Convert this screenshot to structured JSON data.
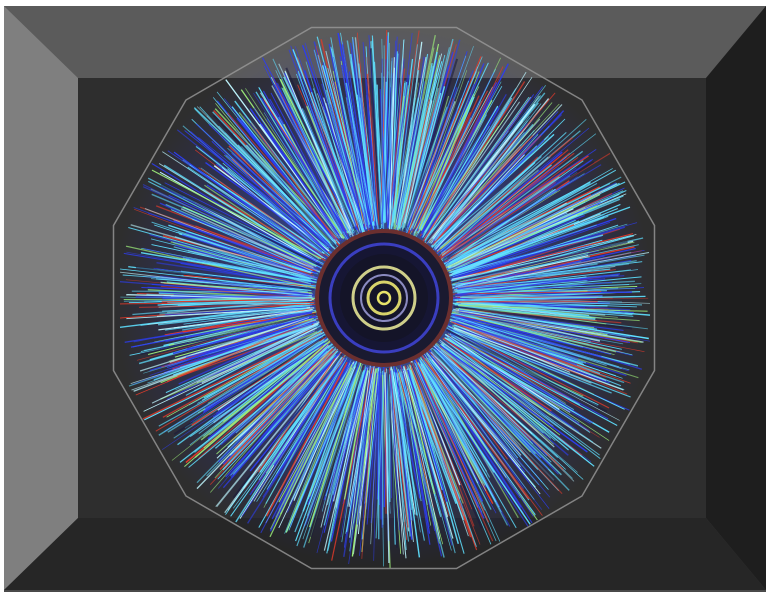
{
  "image": {
    "subject": "particle-collision-event-display",
    "colors": {
      "frame_background": "#ffffff",
      "panel_outer": "#4a4a4a",
      "wall_left": "#7f7f7f",
      "wall_top": "#5b5b5b",
      "wall_right": "#1e1e1e",
      "wall_bottom": "#262626",
      "back_wall": "#2e2e2e",
      "detector_outline": "#9a9a9a",
      "track_blue": "#2d3df0",
      "track_cyan": "#5fe0ff",
      "track_light": "#bff6ff",
      "track_green": "#9ef07a",
      "track_red": "#e03a2a",
      "core_dark": "#141428",
      "core_ring_yellow": "#d8d36a",
      "core_ring_blue": "#3a3ec0"
    }
  }
}
